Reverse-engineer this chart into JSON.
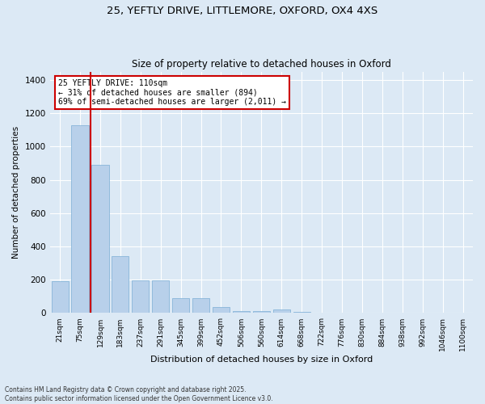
{
  "title_line1": "25, YEFTLY DRIVE, LITTLEMORE, OXFORD, OX4 4XS",
  "title_line2": "Size of property relative to detached houses in Oxford",
  "xlabel": "Distribution of detached houses by size in Oxford",
  "ylabel": "Number of detached properties",
  "categories": [
    "21sqm",
    "75sqm",
    "129sqm",
    "183sqm",
    "237sqm",
    "291sqm",
    "345sqm",
    "399sqm",
    "452sqm",
    "506sqm",
    "560sqm",
    "614sqm",
    "668sqm",
    "722sqm",
    "776sqm",
    "830sqm",
    "884sqm",
    "938sqm",
    "992sqm",
    "1046sqm",
    "1100sqm"
  ],
  "values": [
    190,
    1130,
    890,
    340,
    195,
    195,
    90,
    90,
    35,
    12,
    10,
    20,
    5,
    0,
    0,
    0,
    0,
    0,
    0,
    0,
    0
  ],
  "bar_color": "#b8d0ea",
  "bar_edge_color": "#7aadd4",
  "annotation_text_line1": "25 YEFTLY DRIVE: 110sqm",
  "annotation_text_line2": "← 31% of detached houses are smaller (894)",
  "annotation_text_line3": "69% of semi-detached houses are larger (2,011) →",
  "annotation_box_color": "#cc0000",
  "vline_x_index": 1.5,
  "background_color": "#dce9f5",
  "grid_color": "#ffffff",
  "footer_line1": "Contains HM Land Registry data © Crown copyright and database right 2025.",
  "footer_line2": "Contains public sector information licensed under the Open Government Licence v3.0.",
  "ylim": [
    0,
    1450
  ],
  "yticks": [
    0,
    200,
    400,
    600,
    800,
    1000,
    1200,
    1400
  ]
}
